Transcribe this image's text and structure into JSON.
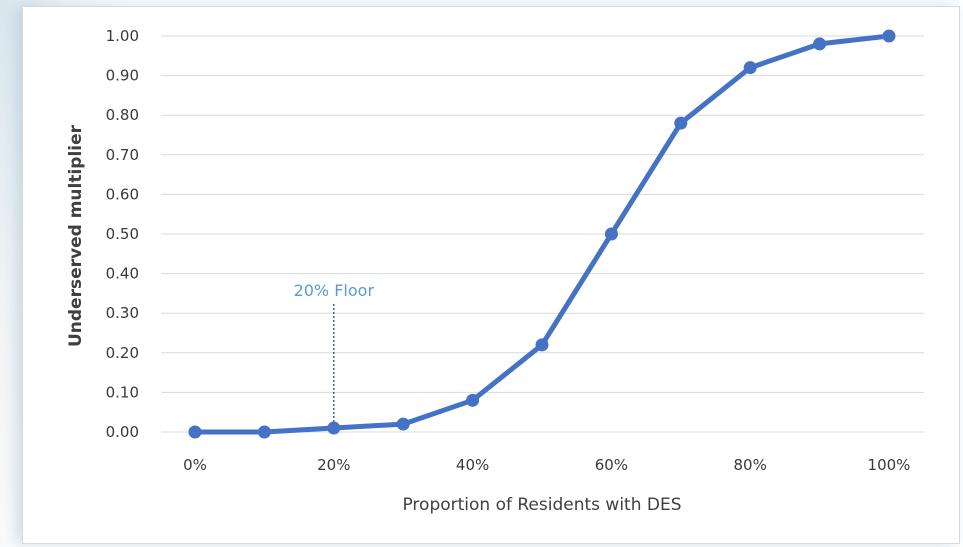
{
  "chart_data": {
    "type": "line",
    "title": "",
    "xlabel": "Proportion of Residents with DES",
    "ylabel": "Underserved multiplier",
    "x": [
      0,
      10,
      20,
      30,
      40,
      50,
      60,
      70,
      80,
      90,
      100
    ],
    "xlim": [
      0,
      100
    ],
    "xticks": [
      0,
      20,
      40,
      60,
      80,
      100
    ],
    "xtick_labels": [
      "0%",
      "20%",
      "40%",
      "60%",
      "80%",
      "100%"
    ],
    "ylim": [
      0,
      1
    ],
    "yticks": [
      0,
      0.1,
      0.2,
      0.3,
      0.4,
      0.5,
      0.6,
      0.7,
      0.8,
      0.9,
      1.0
    ],
    "ytick_labels": [
      "0.00",
      "0.10",
      "0.20",
      "0.30",
      "0.40",
      "0.50",
      "0.60",
      "0.70",
      "0.80",
      "0.90",
      "1.00"
    ],
    "series": [
      {
        "values": [
          0.0,
          0.0,
          0.01,
          0.02,
          0.08,
          0.22,
          0.5,
          0.78,
          0.92,
          0.98,
          1.0
        ],
        "color": "#4472c4"
      }
    ],
    "grid": "horizontal",
    "legend": "none",
    "annotations": [
      {
        "text": "20% Floor",
        "x": 20,
        "color": "#5b9bd5",
        "style": "dotted vertical line"
      }
    ]
  }
}
